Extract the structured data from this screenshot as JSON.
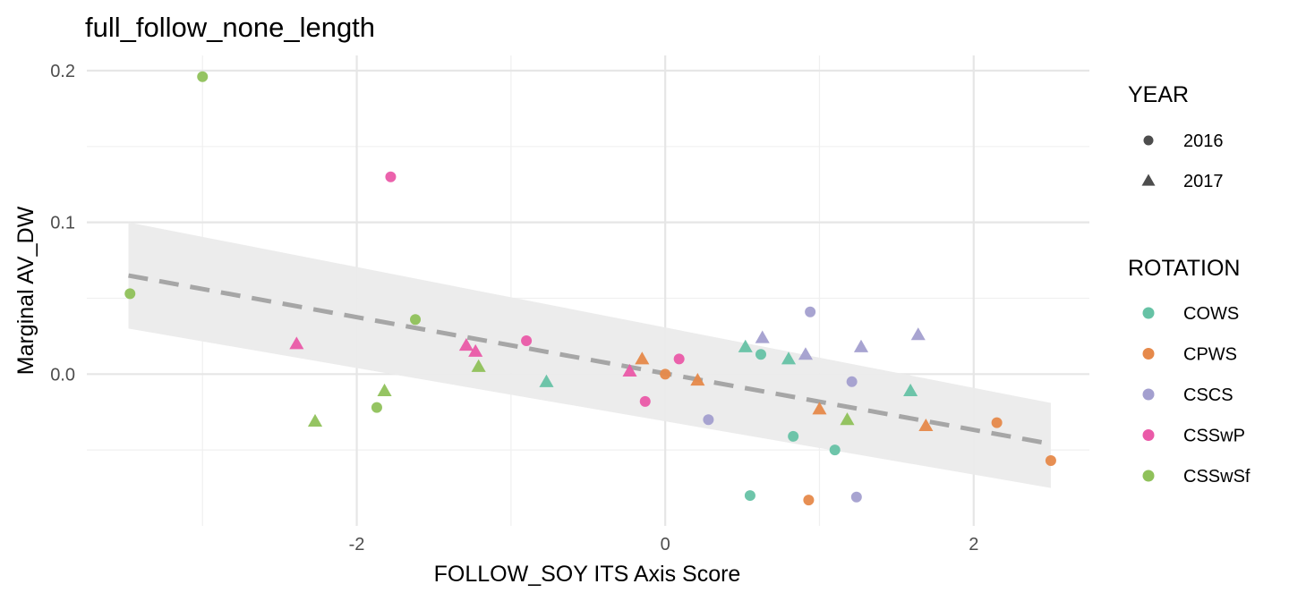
{
  "chart_data": {
    "type": "scatter",
    "title": "full_follow_none_length",
    "xlabel": "FOLLOW_SOY ITS Axis Score",
    "ylabel": "Marginal AV_DW",
    "xlim": [
      -3.75,
      2.75
    ],
    "ylim": [
      -0.1,
      0.21
    ],
    "x_ticks": [
      -2,
      0,
      2
    ],
    "x_tick_labels": [
      "-2",
      "0",
      "2"
    ],
    "y_ticks": [
      0.0,
      0.1,
      0.2
    ],
    "y_tick_labels": [
      "0.0",
      "0.1",
      "0.2"
    ],
    "grid": true,
    "legend_position": "right",
    "year_legend": {
      "title": "YEAR",
      "entries": [
        {
          "label": "2016",
          "shape": "circle"
        },
        {
          "label": "2017",
          "shape": "triangle"
        }
      ]
    },
    "rotation_legend": {
      "title": "ROTATION",
      "entries": [
        {
          "label": "COWS",
          "color": "#66c2a5"
        },
        {
          "label": "CPWS",
          "color": "#e6894a"
        },
        {
          "label": "CSCS",
          "color": "#a39fcf"
        },
        {
          "label": "CSSwP",
          "color": "#ea5aa8"
        },
        {
          "label": "CSSwSf",
          "color": "#8fc15a"
        }
      ]
    },
    "trend": {
      "x": [
        -3.48,
        2.5
      ],
      "y": [
        0.065,
        -0.046
      ],
      "ci_low": [
        0.03,
        -0.075
      ],
      "ci_high": [
        0.1,
        -0.019
      ],
      "line_color": "#a6a6a6",
      "band_color": "#ebebeb"
    },
    "points": [
      {
        "x": -3.0,
        "y": 0.196,
        "rotation": "CSSwSf",
        "year": "2016"
      },
      {
        "x": -3.47,
        "y": 0.053,
        "rotation": "CSSwSf",
        "year": "2016"
      },
      {
        "x": -1.87,
        "y": -0.022,
        "rotation": "CSSwSf",
        "year": "2016"
      },
      {
        "x": -1.62,
        "y": 0.036,
        "rotation": "CSSwSf",
        "year": "2016"
      },
      {
        "x": -2.27,
        "y": -0.031,
        "rotation": "CSSwSf",
        "year": "2017"
      },
      {
        "x": -1.82,
        "y": -0.011,
        "rotation": "CSSwSf",
        "year": "2017"
      },
      {
        "x": -1.21,
        "y": 0.005,
        "rotation": "CSSwSf",
        "year": "2017"
      },
      {
        "x": 1.18,
        "y": -0.03,
        "rotation": "CSSwSf",
        "year": "2017"
      },
      {
        "x": -1.78,
        "y": 0.13,
        "rotation": "CSSwP",
        "year": "2016"
      },
      {
        "x": -0.9,
        "y": 0.022,
        "rotation": "CSSwP",
        "year": "2016"
      },
      {
        "x": -0.13,
        "y": -0.018,
        "rotation": "CSSwP",
        "year": "2016"
      },
      {
        "x": 0.09,
        "y": 0.01,
        "rotation": "CSSwP",
        "year": "2016"
      },
      {
        "x": -2.39,
        "y": 0.02,
        "rotation": "CSSwP",
        "year": "2017"
      },
      {
        "x": -1.29,
        "y": 0.019,
        "rotation": "CSSwP",
        "year": "2017"
      },
      {
        "x": -1.23,
        "y": 0.015,
        "rotation": "CSSwP",
        "year": "2017"
      },
      {
        "x": -0.23,
        "y": 0.002,
        "rotation": "CSSwP",
        "year": "2017"
      },
      {
        "x": 0.62,
        "y": 0.013,
        "rotation": "COWS",
        "year": "2016"
      },
      {
        "x": 0.83,
        "y": -0.041,
        "rotation": "COWS",
        "year": "2016"
      },
      {
        "x": 1.1,
        "y": -0.05,
        "rotation": "COWS",
        "year": "2016"
      },
      {
        "x": 0.55,
        "y": -0.08,
        "rotation": "COWS",
        "year": "2016"
      },
      {
        "x": -0.77,
        "y": -0.005,
        "rotation": "COWS",
        "year": "2017"
      },
      {
        "x": 0.52,
        "y": 0.018,
        "rotation": "COWS",
        "year": "2017"
      },
      {
        "x": 0.8,
        "y": 0.01,
        "rotation": "COWS",
        "year": "2017"
      },
      {
        "x": 1.59,
        "y": -0.011,
        "rotation": "COWS",
        "year": "2017"
      },
      {
        "x": 0.0,
        "y": 0.0,
        "rotation": "CPWS",
        "year": "2016"
      },
      {
        "x": 2.15,
        "y": -0.032,
        "rotation": "CPWS",
        "year": "2016"
      },
      {
        "x": 2.5,
        "y": -0.057,
        "rotation": "CPWS",
        "year": "2016"
      },
      {
        "x": 0.93,
        "y": -0.083,
        "rotation": "CPWS",
        "year": "2016"
      },
      {
        "x": -0.15,
        "y": 0.01,
        "rotation": "CPWS",
        "year": "2017"
      },
      {
        "x": 0.21,
        "y": -0.004,
        "rotation": "CPWS",
        "year": "2017"
      },
      {
        "x": 1.0,
        "y": -0.023,
        "rotation": "CPWS",
        "year": "2017"
      },
      {
        "x": 1.69,
        "y": -0.034,
        "rotation": "CPWS",
        "year": "2017"
      },
      {
        "x": 0.94,
        "y": 0.041,
        "rotation": "CSCS",
        "year": "2016"
      },
      {
        "x": 1.21,
        "y": -0.005,
        "rotation": "CSCS",
        "year": "2016"
      },
      {
        "x": 0.28,
        "y": -0.03,
        "rotation": "CSCS",
        "year": "2016"
      },
      {
        "x": 1.24,
        "y": -0.081,
        "rotation": "CSCS",
        "year": "2016"
      },
      {
        "x": 0.63,
        "y": 0.024,
        "rotation": "CSCS",
        "year": "2017"
      },
      {
        "x": 0.91,
        "y": 0.013,
        "rotation": "CSCS",
        "year": "2017"
      },
      {
        "x": 1.27,
        "y": 0.018,
        "rotation": "CSCS",
        "year": "2017"
      },
      {
        "x": 1.64,
        "y": 0.026,
        "rotation": "CSCS",
        "year": "2017"
      }
    ]
  }
}
